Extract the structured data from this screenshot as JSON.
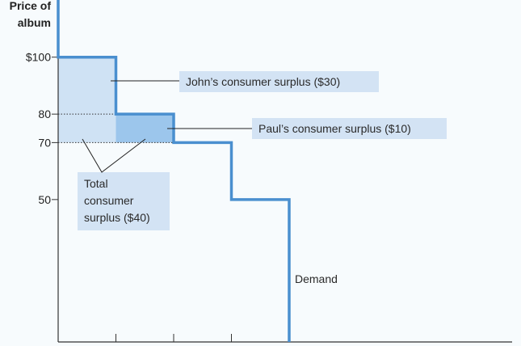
{
  "chart_data": {
    "type": "line",
    "title": "",
    "ylabel_line1": "Price of",
    "ylabel_line2": "album",
    "xlabel": "",
    "y_tick_labels": [
      "$100",
      "80",
      "70",
      "50"
    ],
    "y_ticks": [
      100,
      80,
      70,
      50
    ],
    "ylim": [
      0,
      120
    ],
    "xlim": [
      0,
      8
    ],
    "x_ticks": [
      1,
      2,
      3,
      4
    ],
    "series": [
      {
        "name": "Demand",
        "steps": [
          {
            "x_start": 0,
            "x_end": 1,
            "price": 100
          },
          {
            "x_start": 1,
            "x_end": 2,
            "price": 80
          },
          {
            "x_start": 2,
            "x_end": 3,
            "price": 70
          },
          {
            "x_start": 3,
            "x_end": 4,
            "price": 50
          }
        ]
      }
    ],
    "market_price": 70,
    "shaded_regions": [
      {
        "name": "john",
        "x": [
          0,
          1
        ],
        "y": [
          70,
          100
        ],
        "color": "#cfe2f4"
      },
      {
        "name": "paul",
        "x": [
          1,
          2
        ],
        "y": [
          70,
          80
        ],
        "color": "#9cc6ec"
      }
    ],
    "colors": {
      "demand": "#4a8fcf",
      "label_box": "#d3e3f4"
    },
    "annotations": {
      "john": "John’s consumer surplus ($30)",
      "paul": "Paul’s consumer surplus ($10)",
      "total_line1": "Total",
      "total_line2": "consumer",
      "total_line3": "surplus ($40)",
      "demand": "Demand"
    }
  }
}
